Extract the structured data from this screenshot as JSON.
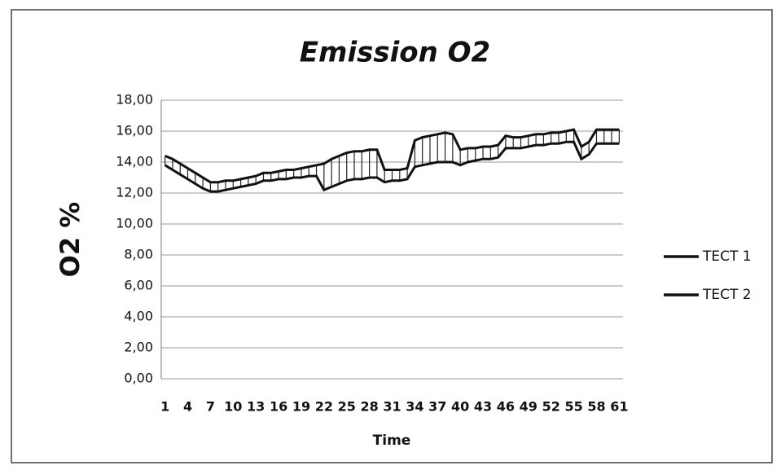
{
  "chart_data": {
    "type": "line",
    "title": "Emission O2",
    "xlabel": "Time",
    "ylabel": "O2 %",
    "categories": [
      1,
      null,
      null,
      4,
      null,
      null,
      7,
      null,
      null,
      10,
      null,
      null,
      13,
      null,
      null,
      16,
      null,
      null,
      19,
      null,
      null,
      22,
      null,
      null,
      25,
      null,
      null,
      28,
      null,
      null,
      31,
      null,
      null,
      34,
      null,
      null,
      37,
      null,
      null,
      40,
      null,
      null,
      43,
      null,
      null,
      46,
      null,
      null,
      49,
      null,
      null,
      52,
      null,
      null,
      55,
      null,
      null,
      58,
      null,
      null,
      61
    ],
    "series": [
      {
        "name": "TECT 1",
        "color": "#111111",
        "values": [
          14.4,
          14.2,
          13.9,
          13.6,
          13.3,
          13.0,
          12.7,
          12.7,
          12.8,
          12.8,
          12.9,
          13.0,
          13.1,
          13.3,
          13.3,
          13.4,
          13.5,
          13.5,
          13.6,
          13.7,
          13.8,
          13.9,
          14.2,
          14.4,
          14.6,
          14.7,
          14.7,
          14.8,
          14.8,
          13.5,
          13.5,
          13.5,
          13.6,
          15.4,
          15.6,
          15.7,
          15.8,
          15.9,
          15.8,
          14.8,
          14.9,
          14.9,
          15.0,
          15.0,
          15.1,
          15.7,
          15.6,
          15.6,
          15.7,
          15.8,
          15.8,
          15.9,
          15.9,
          16.0,
          16.1,
          15.0,
          15.3,
          16.1,
          16.1,
          16.1,
          16.1
        ]
      },
      {
        "name": "TECT 2",
        "color": "#111111",
        "values": [
          13.8,
          13.5,
          13.2,
          12.9,
          12.6,
          12.3,
          12.1,
          12.1,
          12.2,
          12.3,
          12.4,
          12.5,
          12.6,
          12.8,
          12.8,
          12.9,
          12.9,
          13.0,
          13.0,
          13.1,
          13.1,
          12.2,
          12.4,
          12.6,
          12.8,
          12.9,
          12.9,
          13.0,
          13.0,
          12.7,
          12.8,
          12.8,
          12.9,
          13.7,
          13.8,
          13.9,
          14.0,
          14.0,
          14.0,
          13.8,
          14.0,
          14.1,
          14.2,
          14.2,
          14.3,
          14.9,
          14.9,
          14.9,
          15.0,
          15.1,
          15.1,
          15.2,
          15.2,
          15.3,
          15.3,
          14.2,
          14.5,
          15.2,
          15.2,
          15.2,
          15.2
        ]
      }
    ],
    "ylim": [
      0,
      18
    ],
    "yticks": [
      {
        "value": 0,
        "label": "0,00"
      },
      {
        "value": 2,
        "label": "2,00"
      },
      {
        "value": 4,
        "label": "4,00"
      },
      {
        "value": 6,
        "label": "6,00"
      },
      {
        "value": 8,
        "label": "8,00"
      },
      {
        "value": 10,
        "label": "10,00"
      },
      {
        "value": 12,
        "label": "12,00"
      },
      {
        "value": 14,
        "label": "14,00"
      },
      {
        "value": 16,
        "label": "16,00"
      },
      {
        "value": 18,
        "label": "18,00"
      }
    ],
    "grid": true,
    "legend": "right"
  }
}
